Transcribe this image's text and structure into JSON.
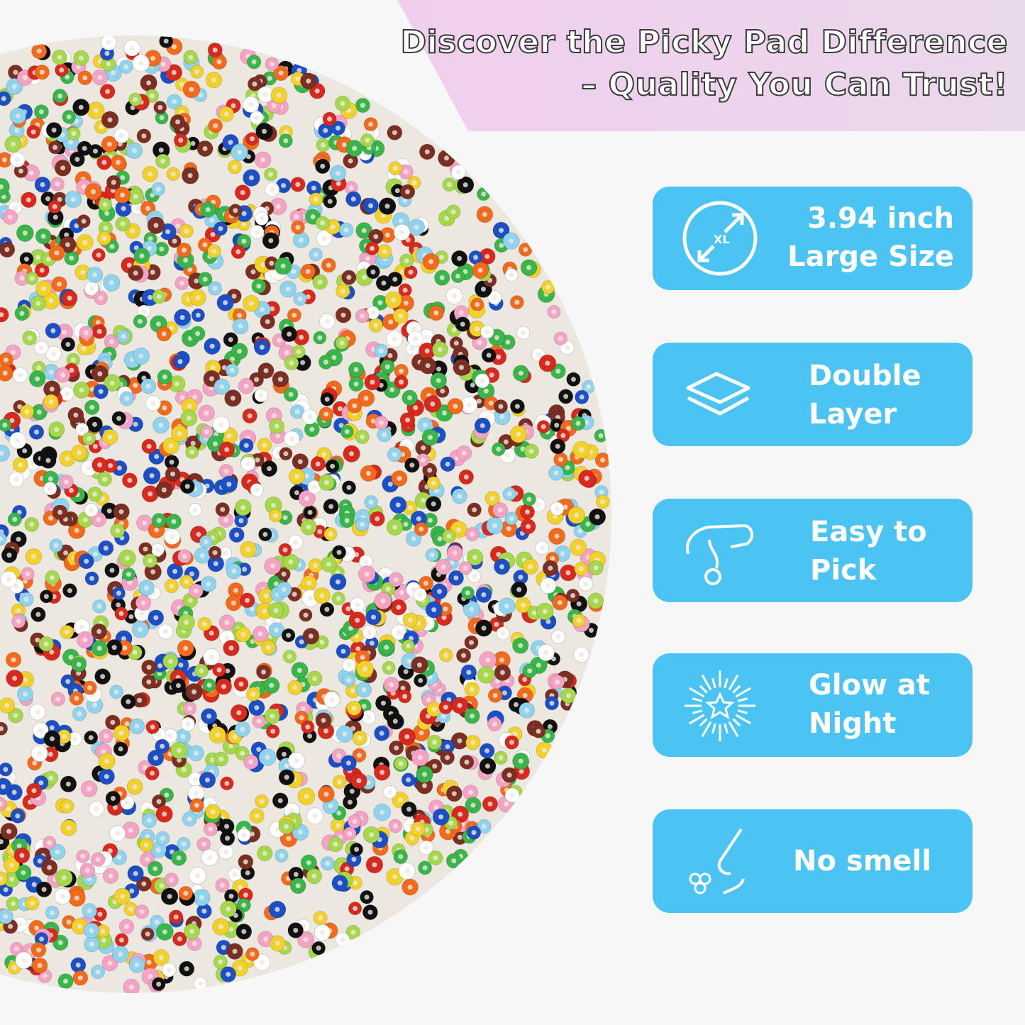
{
  "header": {
    "line1": "Discover the Picky Pad Difference",
    "line2": "– Quality You Can Trust!"
  },
  "colors": {
    "badge": "#4bc4f3",
    "disc": "#ece8e0",
    "beads": [
      "#111111",
      "#d72a1e",
      "#f2d22a",
      "#3ab54a",
      "#1d4fc4",
      "#8fd3ef",
      "#ffffff",
      "#f26a1b",
      "#7a2f22",
      "#f4a3c4",
      "#a6d84b"
    ]
  },
  "features": [
    {
      "icon": "xl-size-icon",
      "line1": "3.94 inch",
      "line2": "Large Size"
    },
    {
      "icon": "layers-icon",
      "line1": "Double",
      "line2": "Layer"
    },
    {
      "icon": "hand-pick-icon",
      "line1": "Easy to",
      "line2": "Pick"
    },
    {
      "icon": "glow-star-icon",
      "line1": "Glow at",
      "line2": "Night"
    },
    {
      "icon": "nose-smell-icon",
      "line1": "No smell",
      "line2": ""
    }
  ]
}
